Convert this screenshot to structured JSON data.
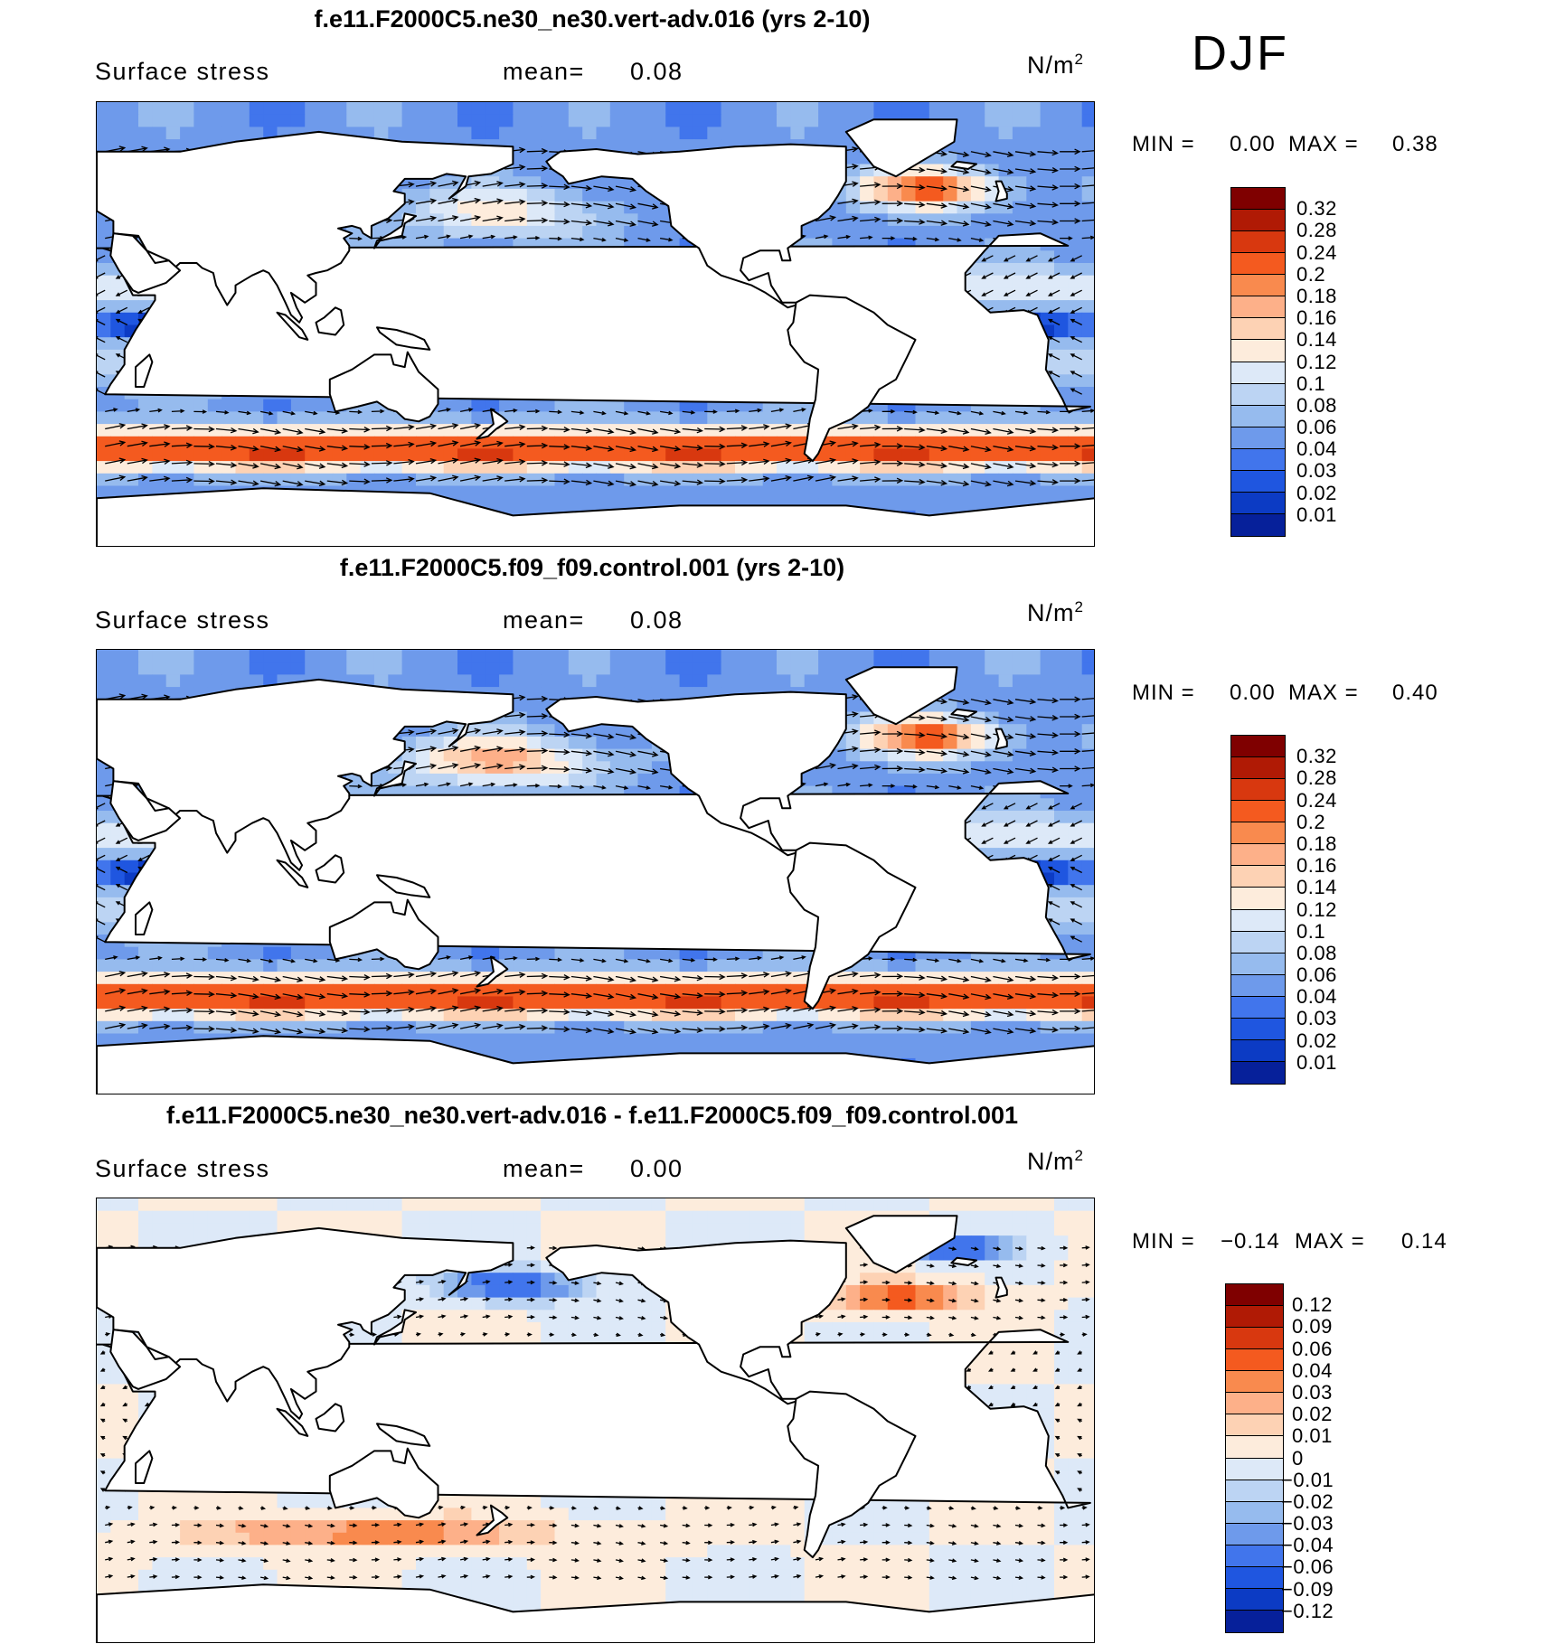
{
  "season": "DJF",
  "panels": [
    {
      "title": "f.e11.F2000C5.ne30_ne30.vert-adv.016 (yrs 2-10)",
      "variable": "Surface stress",
      "mean_label": "mean=",
      "mean_value": "0.08",
      "units": "N/m",
      "units_exp": "2",
      "min_label": "MIN =",
      "min_value": "0.00",
      "max_label": "MAX =",
      "max_value": "0.38",
      "colorbar_labels": [
        "0.32",
        "0.28",
        "0.24",
        "0.2",
        "0.18",
        "0.16",
        "0.14",
        "0.12",
        "0.1",
        "0.08",
        "0.06",
        "0.04",
        "0.03",
        "0.02",
        "0.01"
      ]
    },
    {
      "title": "f.e11.F2000C5.f09_f09.control.001 (yrs 2-10)",
      "variable": "Surface stress",
      "mean_label": "mean=",
      "mean_value": "0.08",
      "units": "N/m",
      "units_exp": "2",
      "min_label": "MIN =",
      "min_value": "0.00",
      "max_label": "MAX =",
      "max_value": "0.40",
      "colorbar_labels": [
        "0.32",
        "0.28",
        "0.24",
        "0.2",
        "0.18",
        "0.16",
        "0.14",
        "0.12",
        "0.1",
        "0.08",
        "0.06",
        "0.04",
        "0.03",
        "0.02",
        "0.01"
      ]
    },
    {
      "title": "f.e11.F2000C5.ne30_ne30.vert-adv.016 - f.e11.F2000C5.f09_f09.control.001",
      "variable": "Surface stress",
      "mean_label": "mean=",
      "mean_value": "0.00",
      "units": "N/m",
      "units_exp": "2",
      "min_label": "MIN =",
      "min_value": "−0.14",
      "max_label": "MAX =",
      "max_value": "0.14",
      "colorbar_labels": [
        "0.12",
        "0.09",
        "0.06",
        "0.04",
        "0.03",
        "0.02",
        "0.01",
        "0",
        "−0.01",
        "−0.02",
        "−0.03",
        "−0.04",
        "−0.06",
        "−0.09",
        "−0.12"
      ]
    }
  ],
  "colors": {
    "seq_scale": [
      "#7f0000",
      "#b01a05",
      "#d8380f",
      "#f45a1f",
      "#f98a4e",
      "#fdb089",
      "#fdd2b4",
      "#fdecdc",
      "#dde9f8",
      "#bcd4f3",
      "#96bbee",
      "#6e9aeb",
      "#4175ec",
      "#1f56e0",
      "#0c3bc4",
      "#06209a"
    ],
    "diff_scale": [
      "#7f0000",
      "#b01a05",
      "#d8380f",
      "#f45a1f",
      "#f98a4e",
      "#fdb089",
      "#fdd2b4",
      "#fdecdc",
      "#dde9f8",
      "#bcd4f3",
      "#96bbee",
      "#6e9aeb",
      "#4175ec",
      "#1f56e0",
      "#0c3bc4",
      "#06209a"
    ],
    "land": "#ffffff",
    "coast": "#000000"
  }
}
